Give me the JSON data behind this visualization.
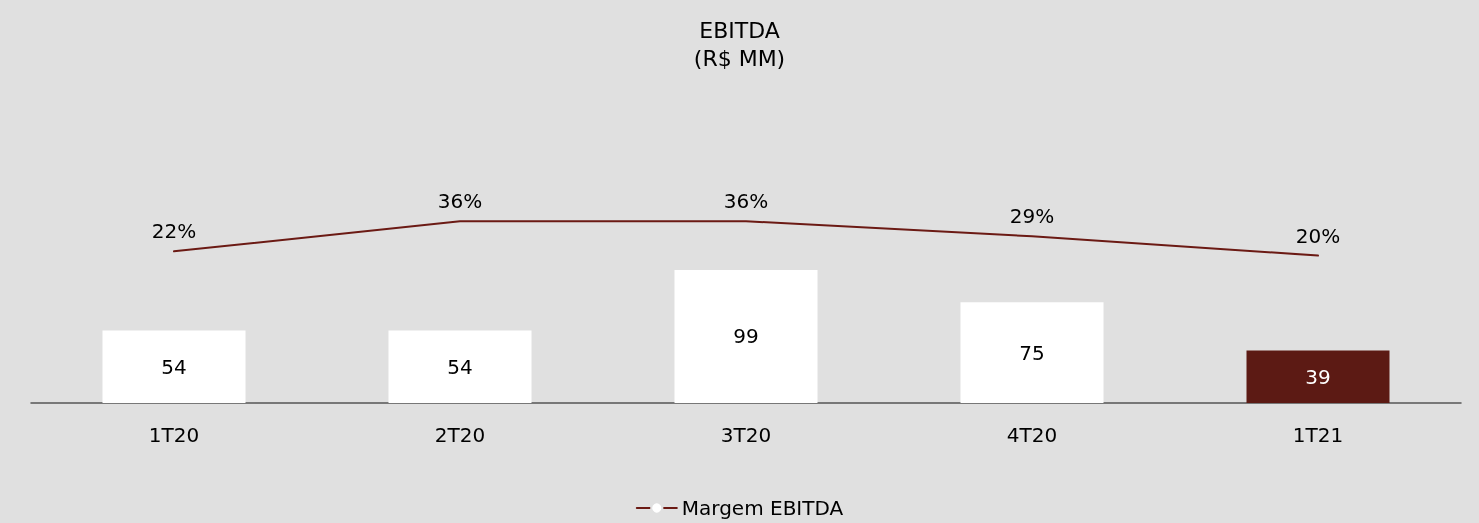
{
  "chart_data": [
    {
      "type": "line",
      "title": "EBITDA",
      "subtitle": "(R$ MM)",
      "categories": [
        null,
        null,
        null,
        null,
        null
      ],
      "series": [
        {
          "name": "Margem EBITDA",
          "color": "#6b1a14",
          "values": [
            22,
            36,
            36,
            29,
            20
          ],
          "value_labels": [
            "22%",
            "36%",
            "36%",
            "29%",
            "20%"
          ]
        }
      ],
      "legend": "bottom",
      "marker": "none",
      "line_style": "solid",
      "tick_labels": false
    },
    {
      "type": "bar",
      "categories": [
        "1T20",
        "2T20",
        "3T20",
        "4T20",
        "1T21"
      ],
      "series": [
        {
          "values": [
            54,
            54,
            99,
            75,
            39
          ],
          "colors": [
            "#ffffff",
            "#ffffff",
            "#ffffff",
            "#ffffff",
            "#5c1a14"
          ]
        }
      ],
      "data_labels": true,
      "tick_labels": "x"
    }
  ]
}
